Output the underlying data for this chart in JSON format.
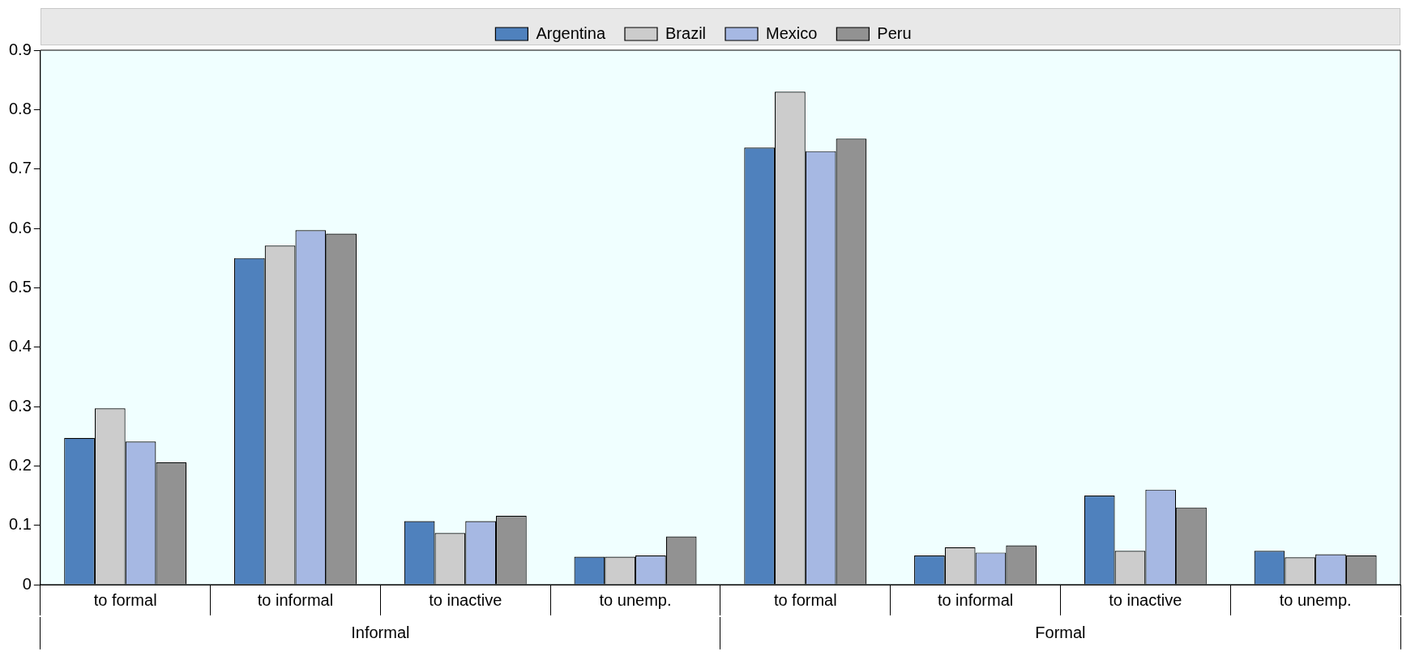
{
  "chart_data": {
    "type": "bar",
    "categories": [
      "to formal",
      "to informal",
      "to inactive",
      "to unemp.",
      "to formal",
      "to informal",
      "to inactive",
      "to unemp."
    ],
    "series": [
      {
        "name": "Argentina",
        "color": "#4f81bd",
        "values": [
          0.247,
          0.55,
          0.107,
          0.047,
          0.736,
          0.049,
          0.15,
          0.057
        ]
      },
      {
        "name": "Brazil",
        "color": "#cccccc",
        "values": [
          0.297,
          0.571,
          0.087,
          0.047,
          0.83,
          0.063,
          0.057,
          0.046
        ]
      },
      {
        "name": "Mexico",
        "color": "#a6b8e3",
        "values": [
          0.241,
          0.597,
          0.107,
          0.049,
          0.73,
          0.054,
          0.16,
          0.051
        ]
      },
      {
        "name": "Peru",
        "color": "#929292",
        "values": [
          0.206,
          0.591,
          0.116,
          0.081,
          0.751,
          0.066,
          0.13,
          0.049
        ]
      }
    ],
    "annotations": [
      "Informal",
      "Formal"
    ],
    "ylim": [
      0,
      0.9
    ],
    "yticks": [
      0,
      0.1,
      0.2,
      0.3,
      0.4,
      0.5,
      0.6,
      0.7,
      0.8,
      0.9
    ],
    "legend": "top",
    "grid": false
  }
}
